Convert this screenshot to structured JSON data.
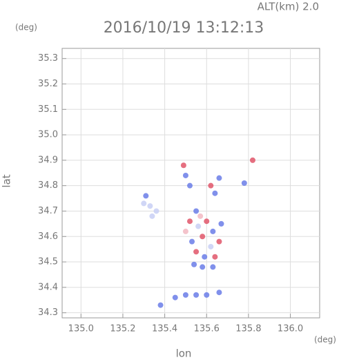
{
  "chart_data": {
    "type": "scatter",
    "title": "2016/10/19 13:12:13",
    "annotation": "ALT(km) 2.0",
    "y_unit": "(deg)",
    "x_unit": "(deg)",
    "xlabel": "lon",
    "ylabel": "lat",
    "xlim": [
      134.91,
      136.14
    ],
    "ylim": [
      34.28,
      35.34
    ],
    "xticks": [
      {
        "value": 135,
        "label": "135.0"
      },
      135.2,
      135.4,
      135.6,
      135.8,
      {
        "value": 136,
        "label": "136.0"
      }
    ],
    "yticks": [
      34.3,
      34.4,
      34.5,
      34.6,
      34.7,
      34.8,
      34.9,
      {
        "value": 35,
        "label": "35.0"
      },
      35.1,
      35.2,
      35.3
    ],
    "grid": true,
    "x": [
      135.31,
      135.33,
      135.36,
      135.34,
      135.3,
      135.49,
      135.5,
      135.52,
      135.62,
      135.64,
      135.66,
      135.78,
      135.82,
      135.55,
      135.52,
      135.56,
      135.6,
      135.63,
      135.58,
      135.53,
      135.62,
      135.66,
      135.55,
      135.59,
      135.64,
      135.54,
      135.58,
      135.63,
      135.5,
      135.57,
      135.67,
      135.45,
      135.5,
      135.55,
      135.6,
      135.66,
      135.38
    ],
    "values": [
      34.76,
      34.72,
      34.7,
      34.68,
      34.73,
      34.88,
      34.84,
      34.8,
      34.8,
      34.77,
      34.83,
      34.81,
      34.9,
      34.7,
      34.66,
      34.64,
      34.66,
      34.62,
      34.6,
      34.58,
      34.56,
      34.58,
      34.54,
      34.52,
      34.52,
      34.49,
      34.48,
      34.48,
      34.62,
      34.68,
      34.65,
      34.36,
      34.37,
      34.37,
      34.37,
      34.38,
      34.33
    ],
    "colors": [
      "#6a7de8",
      "#c8cff5",
      "#c8cff5",
      "#c8cff5",
      "#c8cff5",
      "#e0566a",
      "#6a7de8",
      "#6a7de8",
      "#e0566a",
      "#6a7de8",
      "#6a7de8",
      "#6a7de8",
      "#e0566a",
      "#6a7de8",
      "#e0566a",
      "#c8cff5",
      "#e0566a",
      "#6a7de8",
      "#e0566a",
      "#6a7de8",
      "#c8cff5",
      "#e0566a",
      "#e0566a",
      "#6a7de8",
      "#e0566a",
      "#6a7de8",
      "#6a7de8",
      "#6a7de8",
      "#f2b8c2",
      "#f2b8c2",
      "#6a7de8",
      "#6a7de8",
      "#6a7de8",
      "#6a7de8",
      "#6a7de8",
      "#6a7de8",
      "#6a7de8"
    ]
  }
}
